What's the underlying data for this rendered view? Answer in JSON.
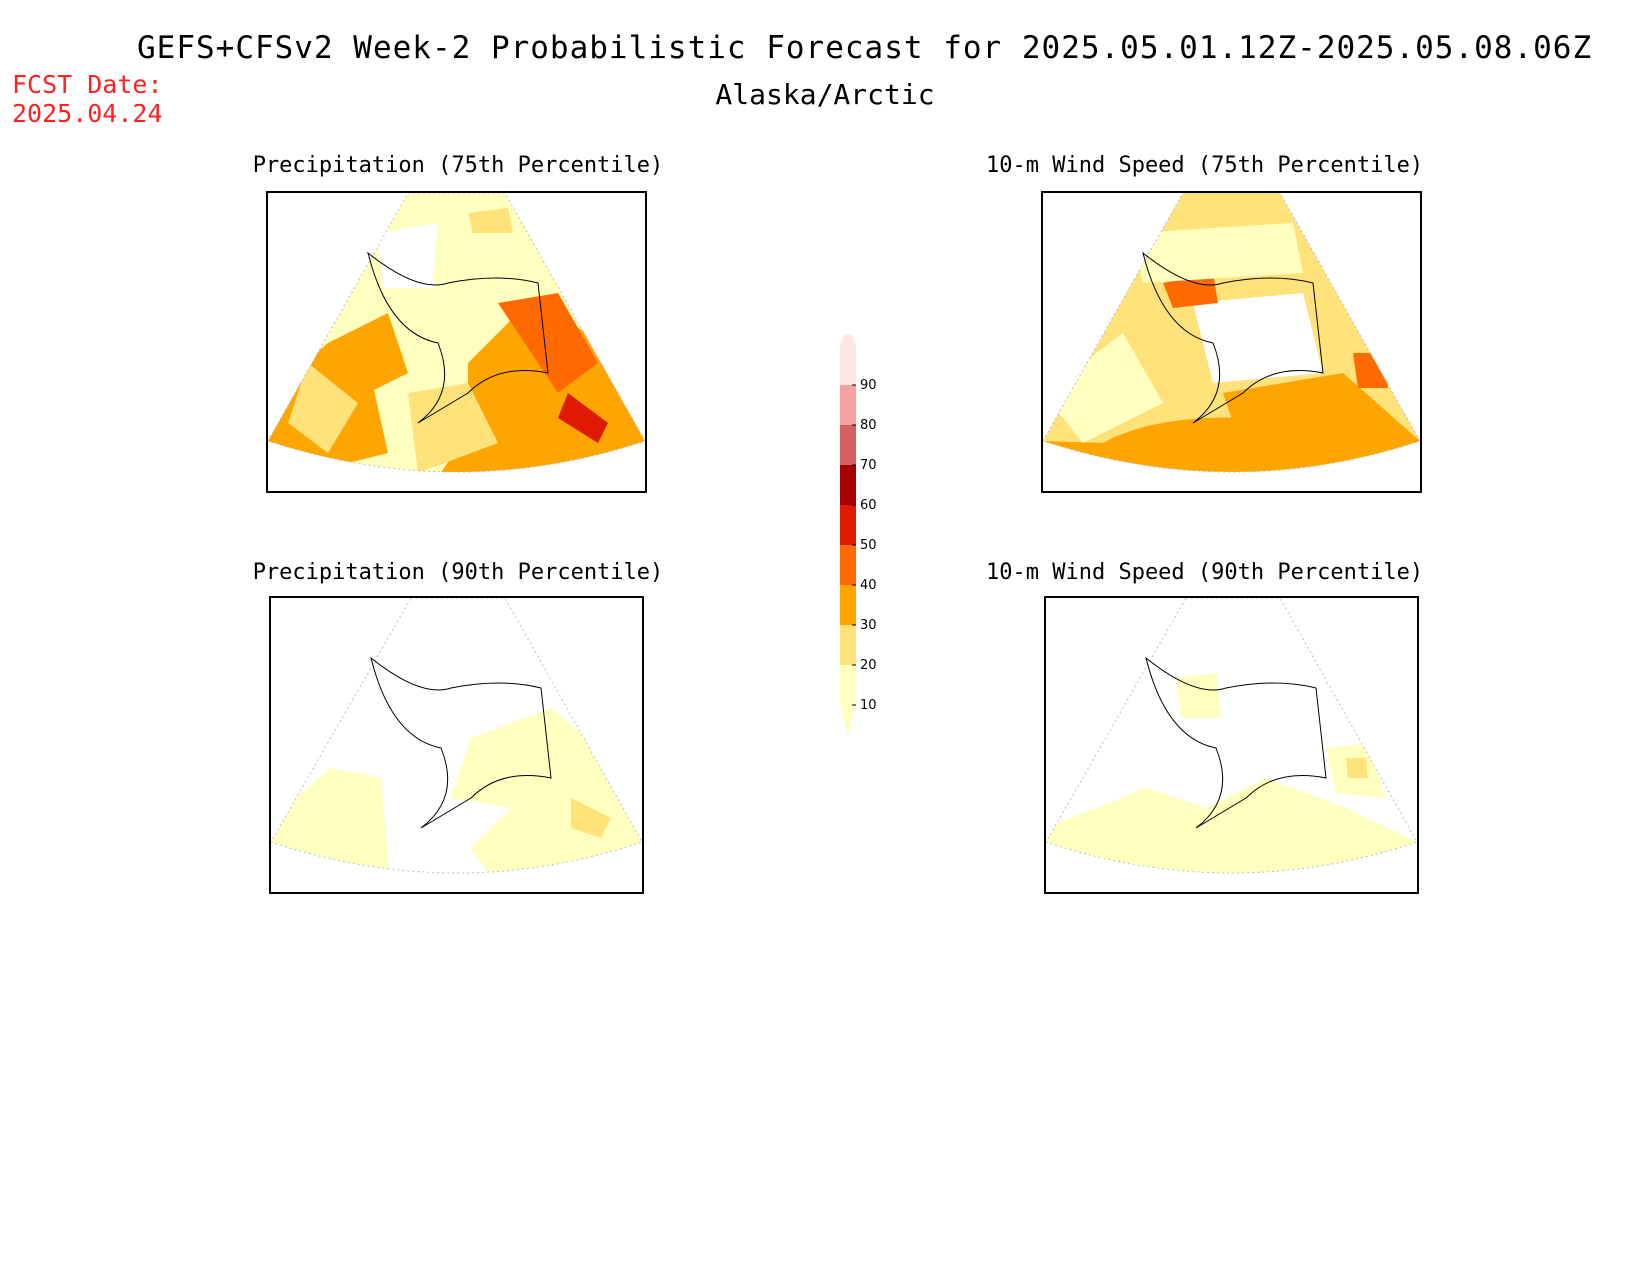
{
  "header": {
    "title": "GEFS+CFSv2 Week-2 Probabilistic Forecast for 2025.05.01.12Z-2025.05.08.06Z",
    "region": "Alaska/Arctic",
    "fcst_label": "FCST Date:",
    "fcst_date": "2025.04.24"
  },
  "panels": [
    {
      "title": "Precipitation (75th Percentile)",
      "intensity": "high"
    },
    {
      "title": "10-m Wind Speed (75th Percentile)",
      "intensity": "high-south"
    },
    {
      "title": "Precipitation (90th Percentile)",
      "intensity": "low"
    },
    {
      "title": "10-m Wind Speed (90th Percentile)",
      "intensity": "low"
    }
  ],
  "colorbar": {
    "levels": [
      "10",
      "20",
      "30",
      "40",
      "50",
      "60",
      "70",
      "80",
      "90"
    ],
    "colors": [
      "#ffffc0",
      "#ffe27a",
      "#ffa500",
      "#ff6a00",
      "#e01a00",
      "#a50000",
      "#d66060",
      "#f4a3a3",
      "#ffe4e4"
    ]
  }
}
